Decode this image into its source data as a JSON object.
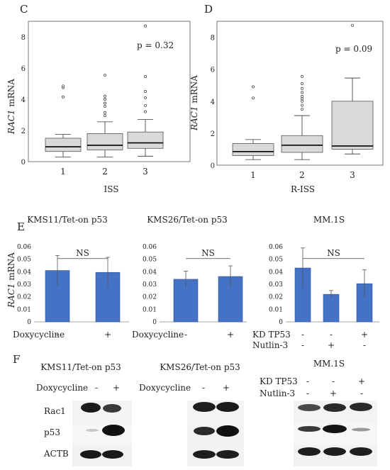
{
  "panel_letters": {
    "c": "C",
    "d": "D",
    "e": "E",
    "f": "F"
  },
  "colors": {
    "bar": "#4472C4",
    "bar_stroke": "#2F5597",
    "box": "#d9d9d9",
    "axis": "#555555"
  },
  "common": {
    "gene": "RAC1",
    "mrna_suffix": " mRNA"
  },
  "chart_data": [
    {
      "id": "C",
      "type": "box",
      "xlabel": "ISS",
      "ylim": [
        0,
        9
      ],
      "yticks": [
        0,
        2,
        4,
        6,
        8
      ],
      "categories": [
        "1",
        "2",
        "3"
      ],
      "annotation": "p = 0.32",
      "boxes": [
        {
          "whisker_low": 0.3,
          "q1": 0.65,
          "median": 0.95,
          "q3": 1.5,
          "whisker_high": 1.75,
          "outliers": [
            4.15,
            4.75,
            4.85
          ]
        },
        {
          "whisker_low": 0.3,
          "q1": 0.75,
          "median": 1.05,
          "q3": 1.8,
          "whisker_high": 2.55,
          "outliers": [
            2.95,
            3.15,
            3.55,
            3.75,
            4.0,
            4.2,
            5.55
          ]
        },
        {
          "whisker_low": 0.35,
          "q1": 0.85,
          "median": 1.2,
          "q3": 1.9,
          "whisker_high": 2.7,
          "outliers": [
            3.2,
            3.6,
            4.1,
            4.5,
            5.45,
            8.7
          ]
        }
      ]
    },
    {
      "id": "D",
      "type": "box",
      "xlabel": "R-ISS",
      "ylim": [
        0,
        9
      ],
      "yticks": [
        0,
        2,
        4,
        6,
        8
      ],
      "categories": [
        "1",
        "2",
        "3"
      ],
      "annotation": "p = 0.09",
      "boxes": [
        {
          "whisker_low": 0.35,
          "q1": 0.6,
          "median": 0.85,
          "q3": 1.35,
          "whisker_high": 1.6,
          "outliers": [
            4.2,
            4.9
          ]
        },
        {
          "whisker_low": 0.35,
          "q1": 0.8,
          "median": 1.25,
          "q3": 1.85,
          "whisker_high": 3.1,
          "outliers": [
            3.5,
            3.75,
            4.0,
            4.15,
            4.3,
            4.55,
            4.8,
            5.1,
            5.55
          ]
        },
        {
          "whisker_low": 0.7,
          "q1": 1.0,
          "median": 1.2,
          "q3": 4.0,
          "whisker_high": 5.45,
          "outliers": [
            8.75
          ]
        }
      ]
    },
    {
      "id": "E1",
      "type": "bar",
      "title": "KMS11/Tet-on p53",
      "ylim": [
        0,
        0.06
      ],
      "yticks": [
        "0",
        "0.01",
        "0.02",
        "0.03",
        "0.04",
        "0.05",
        "0.06"
      ],
      "values": [
        0.041,
        0.0395
      ],
      "errors": [
        0.012,
        0.012
      ],
      "sig": "NS",
      "conditions": [
        {
          "label": "Doxycycline",
          "values": [
            "-",
            "+"
          ]
        }
      ]
    },
    {
      "id": "E2",
      "type": "bar",
      "title": "KMS26/Tet-on p53",
      "ylim": [
        0,
        0.06
      ],
      "yticks": [
        "0",
        "0.01",
        "0.02",
        "0.03",
        "0.04",
        "0.05",
        "0.06"
      ],
      "values": [
        0.034,
        0.0362
      ],
      "errors": [
        0.0065,
        0.0085
      ],
      "sig": "NS",
      "conditions": [
        {
          "label": "Doxycycline",
          "values": [
            "-",
            "+"
          ]
        }
      ]
    },
    {
      "id": "E3",
      "type": "bar",
      "title": "MM.1S",
      "ylim": [
        0,
        0.06
      ],
      "yticks": [
        "0",
        "0.01",
        "0.02",
        "0.03",
        "0.04",
        "0.05",
        "0.06"
      ],
      "values": [
        0.043,
        0.022,
        0.0305
      ],
      "errors": [
        0.016,
        0.003,
        0.011
      ],
      "sig": "NS",
      "conditions": [
        {
          "label": "KD TP53",
          "values": [
            "-",
            "-",
            "+"
          ]
        },
        {
          "label": "Nutlin-3",
          "values": [
            "-",
            "+",
            "-"
          ]
        }
      ]
    }
  ],
  "blots": {
    "row_labels": [
      "Rac1",
      "p53",
      "ACTB"
    ],
    "panels": [
      {
        "title": "KMS11/Tet-on p53",
        "conditions": [
          {
            "label": "Doxycycline",
            "values": [
              "-",
              "+"
            ]
          }
        ]
      },
      {
        "title": "KMS26/Tet-on p53",
        "conditions": [
          {
            "label": "Doxycycline",
            "values": [
              "-",
              "+"
            ]
          }
        ]
      },
      {
        "title": "MM.1S",
        "conditions": [
          {
            "label": "KD TP53",
            "values": [
              "-",
              "-",
              "+"
            ]
          },
          {
            "label": "Nutlin-3",
            "values": [
              "-",
              "+",
              "-"
            ]
          }
        ]
      }
    ]
  }
}
